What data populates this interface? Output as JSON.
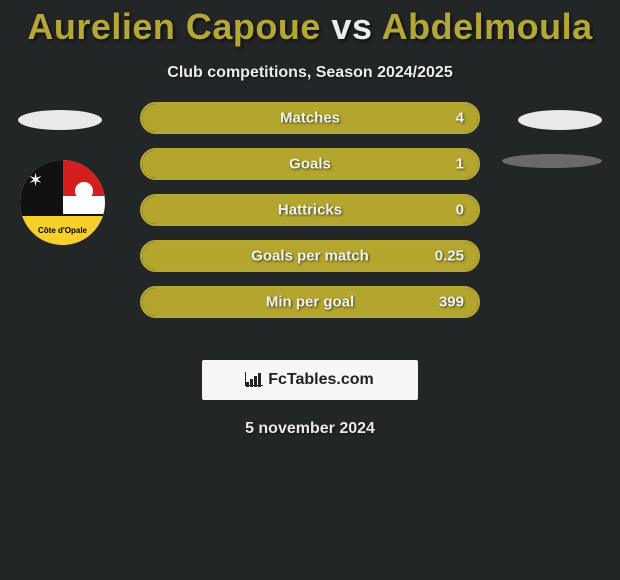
{
  "title": {
    "player1": "Aurelien Capoue",
    "vs": "vs",
    "player2": "Abdelmoula"
  },
  "subtitle": "Club competitions, Season 2024/2025",
  "colors": {
    "accent": "#b3a52e",
    "accent_border": "#b4a735",
    "background": "#232627",
    "text_light": "#eaedee",
    "ellipse_light": "#e8e9e9",
    "ellipse_dark": "#6a6a6a"
  },
  "badge": {
    "text": "Côte d'Opale",
    "colors": {
      "black": "#111111",
      "red": "#d41f1f",
      "yellow": "#f6cf2b",
      "white": "#ffffff"
    }
  },
  "stats": [
    {
      "label": "Matches",
      "value": "4",
      "fill_pct": 100
    },
    {
      "label": "Goals",
      "value": "1",
      "fill_pct": 100
    },
    {
      "label": "Hattricks",
      "value": "0",
      "fill_pct": 100
    },
    {
      "label": "Goals per match",
      "value": "0.25",
      "fill_pct": 100
    },
    {
      "label": "Min per goal",
      "value": "399",
      "fill_pct": 100
    }
  ],
  "brand": "FcTables.com",
  "date": "5 november 2024"
}
